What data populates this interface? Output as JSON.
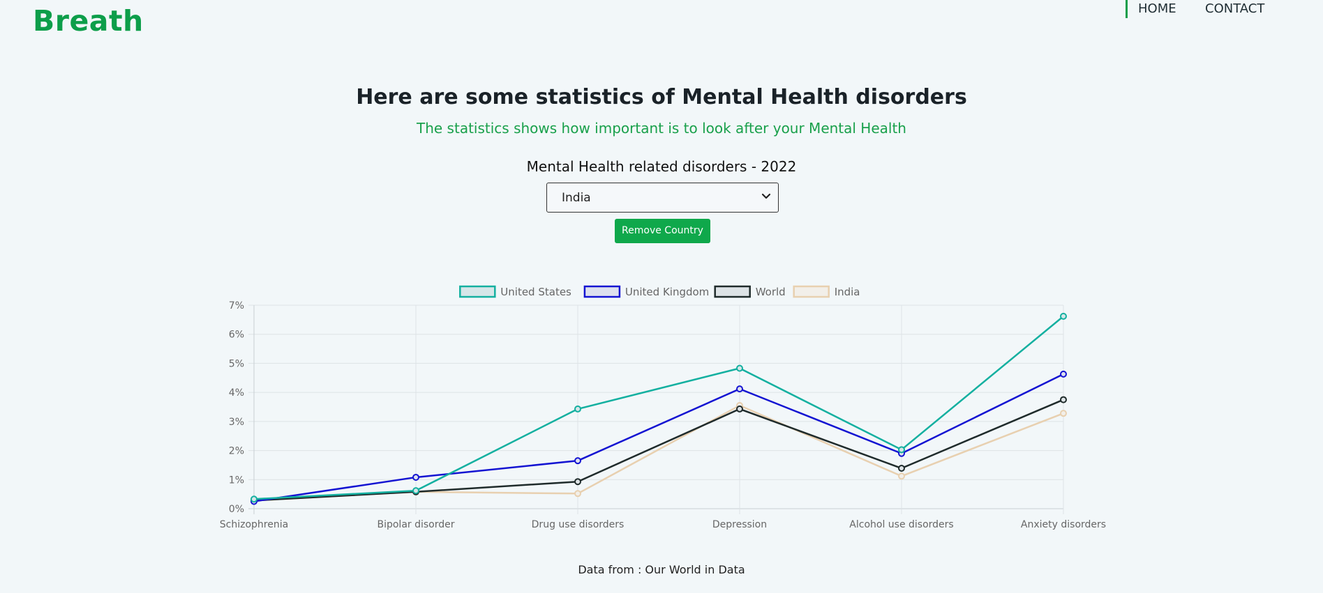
{
  "brand": "Breath",
  "nav": {
    "home": "HOME",
    "contact": "CONTACT"
  },
  "header": {
    "title": "Here are some statistics of Mental Health disorders",
    "subtitle": "The statistics shows how important is to look after your Mental Health"
  },
  "chart_section": {
    "heading": "Mental Health related disorders - 2022",
    "country_select": {
      "value": "India"
    },
    "remove_button": "Remove Country"
  },
  "footer": "Data from : Our World in Data",
  "chart_data": {
    "type": "line",
    "categories": [
      "Schizophrenia",
      "Bipolar disorder",
      "Drug use disorders",
      "Depression",
      "Alcohol use disorders",
      "Anxiety disorders"
    ],
    "series": [
      {
        "name": "United States",
        "color": "#14b0a0",
        "fill": "#d6e6e8",
        "values": [
          0.33,
          0.62,
          3.43,
          4.83,
          2.03,
          6.62
        ]
      },
      {
        "name": "United Kingdom",
        "color": "#1414d2",
        "fill": "#dde0ee",
        "values": [
          0.25,
          1.08,
          1.65,
          4.12,
          1.9,
          4.63
        ]
      },
      {
        "name": "World",
        "color": "#1f2b2b",
        "fill": "#dde3e6",
        "values": [
          0.28,
          0.58,
          0.93,
          3.43,
          1.39,
          3.75
        ]
      },
      {
        "name": "India",
        "color": "#e8d0b0",
        "fill": "#f2efe9",
        "values": [
          0.28,
          0.58,
          0.52,
          3.55,
          1.12,
          3.28
        ]
      }
    ],
    "y_ticks": [
      "0%",
      "1%",
      "2%",
      "3%",
      "4%",
      "5%",
      "6%",
      "7%"
    ],
    "ylim": [
      0,
      7
    ],
    "legend_position": "top",
    "grid": true
  }
}
